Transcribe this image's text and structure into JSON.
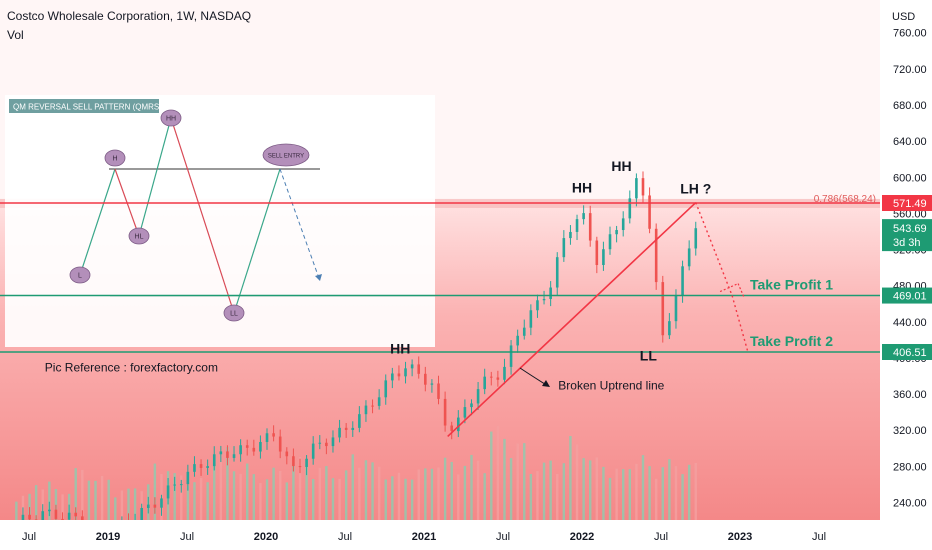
{
  "header": {
    "title": "Costco Wholesale Corporation, 1W, NASDAQ",
    "volume_label": "Vol"
  },
  "colors": {
    "up": "#26a69a",
    "down": "#ef5350",
    "level": "#1e9b73",
    "resistance": "#f23645",
    "trend": "#f23645",
    "tp_text": "#1e9b73",
    "current_price_bg": "#1e9b73"
  },
  "chart_data": {
    "type": "candlestick",
    "title": "Costco Wholesale Corporation, 1W, NASDAQ",
    "currency_label": "USD",
    "price_axis_ticks": [
      "760.00",
      "720.00",
      "680.00",
      "640.00",
      "600.00",
      "560.00",
      "520.00",
      "480.00",
      "440.00",
      "400.00",
      "360.00",
      "320.00",
      "280.00",
      "240.00"
    ],
    "time_axis_ticks": [
      "Jul",
      "2019",
      "Jul",
      "2020",
      "Jul",
      "2021",
      "Jul",
      "2022",
      "Jul",
      "2023",
      "Jul"
    ],
    "ylim": [
      225,
      775
    ],
    "price_path": [
      [
        2018.42,
        218
      ],
      [
        2018.6,
        228
      ],
      [
        2018.8,
        222
      ],
      [
        2018.95,
        200
      ],
      [
        2019.1,
        215
      ],
      [
        2019.3,
        240
      ],
      [
        2019.5,
        272
      ],
      [
        2019.7,
        292
      ],
      [
        2019.9,
        300
      ],
      [
        2020.05,
        315
      ],
      [
        2020.17,
        275
      ],
      [
        2020.3,
        300
      ],
      [
        2020.5,
        320
      ],
      [
        2020.65,
        345
      ],
      [
        2020.8,
        380
      ],
      [
        2020.88,
        390
      ],
      [
        2020.95,
        385
      ],
      [
        2021.05,
        370
      ],
      [
        2021.15,
        320
      ],
      [
        2021.22,
        330
      ],
      [
        2021.35,
        370
      ],
      [
        2021.5,
        385
      ],
      [
        2021.6,
        430
      ],
      [
        2021.7,
        455
      ],
      [
        2021.8,
        480
      ],
      [
        2021.9,
        540
      ],
      [
        2022.0,
        560
      ],
      [
        2022.1,
        505
      ],
      [
        2022.2,
        540
      ],
      [
        2022.3,
        570
      ],
      [
        2022.35,
        600
      ],
      [
        2022.4,
        580
      ],
      [
        2022.45,
        515
      ],
      [
        2022.5,
        420
      ],
      [
        2022.55,
        445
      ],
      [
        2022.6,
        470
      ],
      [
        2022.67,
        520
      ],
      [
        2022.72,
        548
      ]
    ],
    "volume_heights": [
      0.25,
      0.38,
      0.3,
      0.5,
      0.42,
      0.3,
      0.35,
      0.55,
      0.45,
      0.4,
      0.7,
      0.55,
      0.45,
      0.5,
      0.6,
      0.52,
      0.48,
      0.65,
      0.55,
      0.45,
      0.5,
      0.6,
      0.58,
      0.62,
      0.9,
      0.75,
      0.55,
      0.6,
      0.8,
      0.6,
      0.5,
      0.62,
      0.55,
      0.58,
      0.55
    ],
    "levels": {
      "resistance": {
        "value": 571.49,
        "label": "571.49"
      },
      "fib": {
        "value": 568.24,
        "label": "0.786(568.24)"
      },
      "take_profit_1": {
        "value": 469.01,
        "label": "469.01",
        "text": "Take Profit 1"
      },
      "take_profit_2": {
        "value": 406.51,
        "label": "406.51",
        "text": "Take Profit 2"
      },
      "current": {
        "value": 543.69,
        "label": "543.69",
        "countdown": "3d 3h"
      }
    },
    "trendline": {
      "from": [
        2021.15,
        313
      ],
      "to": [
        2022.72,
        572
      ]
    },
    "projection": [
      [
        2022.72,
        572
      ],
      [
        2022.95,
        469
      ],
      [
        2023.05,
        406.51
      ]
    ],
    "annotations": [
      {
        "text": "HH",
        "at": [
          2020.85,
          405
        ]
      },
      {
        "text": "HH",
        "at": [
          2022.0,
          583
        ]
      },
      {
        "text": "HH",
        "at": [
          2022.25,
          607
        ]
      },
      {
        "text": "LH ?",
        "at": [
          2022.72,
          582
        ]
      },
      {
        "text": "LL",
        "at": [
          2022.42,
          397
        ]
      },
      {
        "text": "Broken Uptrend line",
        "at": [
          2021.85,
          365
        ]
      },
      {
        "text": "Pic Reference : forexfactory.com",
        "at": [
          2018.6,
          385
        ]
      }
    ],
    "inset": {
      "title": "QM REVERSAL SELL PATTERN (QMRS)",
      "points": [
        "L",
        "H",
        "HL",
        "HH",
        "LL",
        "SELL ENTRY"
      ]
    }
  }
}
